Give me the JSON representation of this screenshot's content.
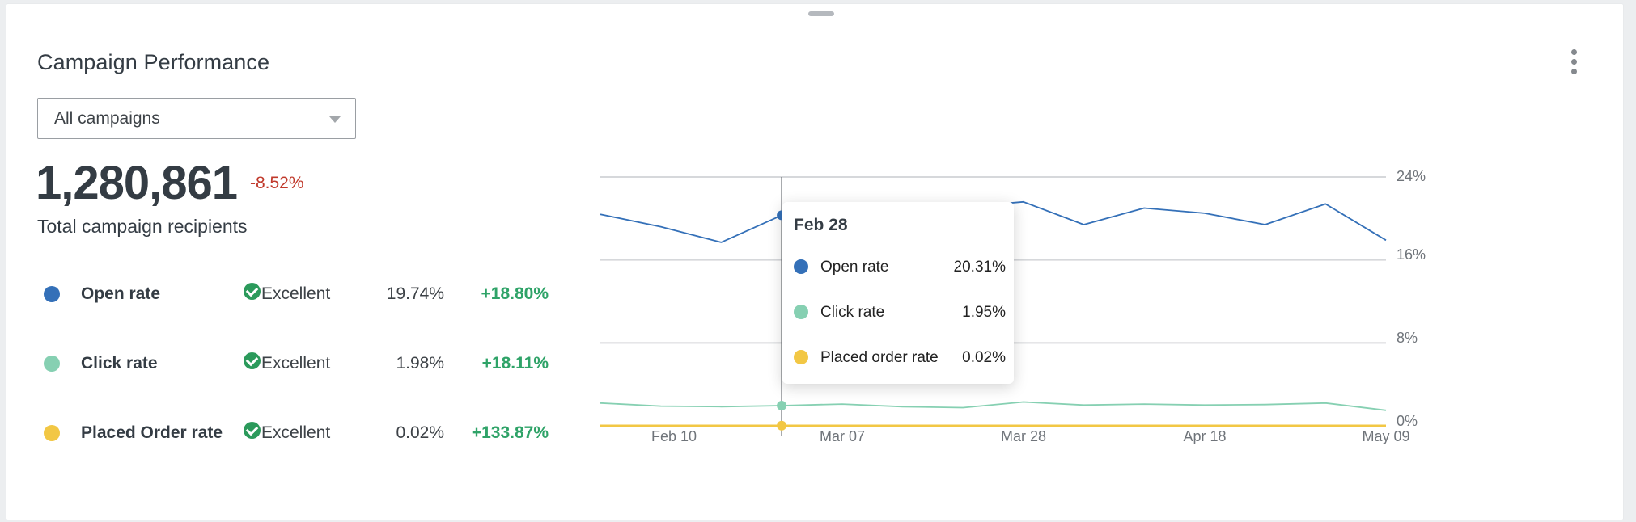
{
  "card": {
    "title": "Campaign Performance",
    "menu_icon": "kebab-menu-icon",
    "drag_handle_icon": "drag-handle-icon"
  },
  "filter": {
    "selected": "All campaigns",
    "icon": "chevron-down-icon"
  },
  "summary": {
    "total": "1,280,861",
    "change": "-8.52%",
    "change_color": "#c0392b",
    "label": "Total campaign recipients"
  },
  "metrics": [
    {
      "name": "Open rate",
      "color": "#3470b8",
      "status": "Excellent",
      "status_icon": "check-circle-icon",
      "value": "19.74%",
      "change": "+18.80%"
    },
    {
      "name": "Click rate",
      "color": "#86d0b2",
      "status": "Excellent",
      "status_icon": "check-circle-icon",
      "value": "1.98%",
      "change": "+18.11%"
    },
    {
      "name": "Placed Order rate",
      "color": "#f2c744",
      "status": "Excellent",
      "status_icon": "check-circle-icon",
      "value": "0.02%",
      "change": "+133.87%"
    }
  ],
  "tooltip": {
    "title": "Feb 28",
    "rows": [
      {
        "label": "Open rate",
        "value": "20.31%",
        "color": "#3470b8"
      },
      {
        "label": "Click rate",
        "value": "1.95%",
        "color": "#86d0b2"
      },
      {
        "label": "Placed order rate",
        "value": "0.02%",
        "color": "#f2c744"
      }
    ]
  },
  "chart_data": {
    "type": "line",
    "title": "",
    "xlabel": "",
    "ylabel": "",
    "x_tick_labels": [
      "Feb 10",
      "Mar 07",
      "Mar 28",
      "Apr 18",
      "May 09"
    ],
    "y_tick_labels": [
      "24%",
      "16%",
      "8%",
      "0%"
    ],
    "ylim": [
      0,
      24
    ],
    "y_axis_position": "right",
    "grid": true,
    "legend": "left-side metric list",
    "point_count": 14,
    "hover_index": 3,
    "hover_label": "Feb 28",
    "series": [
      {
        "name": "Open rate",
        "color": "#3470b8",
        "values": [
          20.4,
          19.2,
          17.7,
          20.31,
          21.0,
          21.2,
          21.1,
          21.6,
          19.4,
          21.0,
          20.5,
          19.4,
          21.4,
          17.9
        ]
      },
      {
        "name": "Click rate",
        "color": "#86d0b2",
        "values": [
          2.2,
          1.9,
          1.85,
          1.95,
          2.1,
          1.85,
          1.75,
          2.3,
          2.0,
          2.1,
          2.0,
          2.05,
          2.2,
          1.5
        ]
      },
      {
        "name": "Placed order rate",
        "color": "#f2c744",
        "values": [
          0.02,
          0.02,
          0.02,
          0.02,
          0.02,
          0.02,
          0.02,
          0.02,
          0.02,
          0.02,
          0.02,
          0.02,
          0.02,
          0.02
        ]
      }
    ]
  }
}
